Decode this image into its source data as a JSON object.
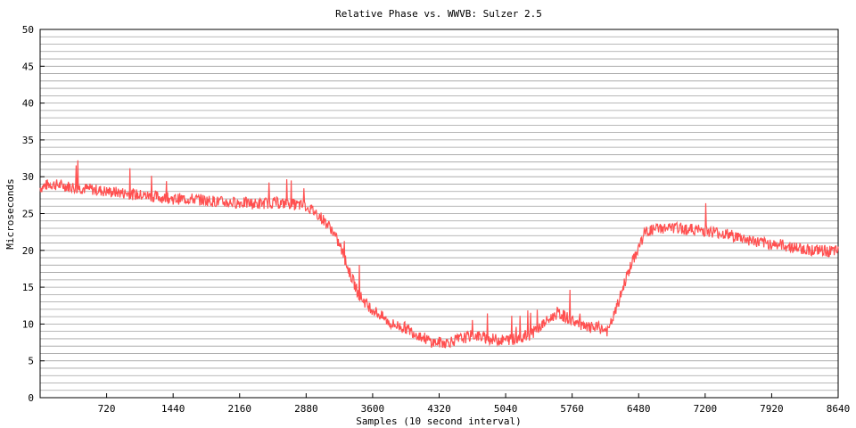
{
  "chart_data": {
    "type": "line",
    "title": "Relative Phase vs. WWVB: Sulzer 2.5",
    "xlabel": "Samples (10 second interval)",
    "ylabel": "Microseconds",
    "xlim": [
      0,
      8640
    ],
    "ylim": [
      0,
      50
    ],
    "xticks": [
      720,
      1440,
      2160,
      2880,
      3600,
      4320,
      5040,
      5760,
      6480,
      7200,
      7920,
      8640
    ],
    "xtick_labels": [
      "720",
      "1440",
      "2160",
      "2880",
      "3600",
      "4320",
      "5040",
      "5760",
      "6480",
      "7200",
      "7920",
      "8640"
    ],
    "yticks": [
      0,
      5,
      10,
      15,
      20,
      25,
      30,
      35,
      40,
      45,
      50
    ],
    "ytick_labels": [
      "0",
      "5",
      "10",
      "15",
      "20",
      "25",
      "30",
      "35",
      "40",
      "45",
      "50"
    ],
    "grid": "horizontal-every-1",
    "legend": "none",
    "line_color": "#ff5050",
    "series": [
      {
        "x": [
          0,
          100,
          250,
          400,
          550,
          720,
          900,
          1080,
          1250,
          1440,
          1620,
          1800,
          2000,
          2160,
          2350,
          2520,
          2700,
          2880,
          3000,
          3150,
          3250,
          3350,
          3450,
          3550,
          3650,
          3800,
          3950,
          4100,
          4250,
          4400,
          4550,
          4700,
          4850,
          5000,
          5150,
          5300,
          5450,
          5600,
          5760,
          5900,
          6050,
          6150,
          6250,
          6350,
          6450,
          6550,
          6700,
          6900,
          7100,
          7300,
          7500,
          7650,
          7800,
          8000,
          8200,
          8400,
          8640
        ],
        "y": [
          28.5,
          29.0,
          28.8,
          28.5,
          28.3,
          28.0,
          27.8,
          27.5,
          27.3,
          27.0,
          27.0,
          26.8,
          26.5,
          26.5,
          26.3,
          26.5,
          26.3,
          26.0,
          25.0,
          23.0,
          20.5,
          17.0,
          14.0,
          12.5,
          11.5,
          10.0,
          9.5,
          8.5,
          7.5,
          7.5,
          8.0,
          8.5,
          8.0,
          7.8,
          8.0,
          8.5,
          10.0,
          11.5,
          10.5,
          9.5,
          9.5,
          9.0,
          12.5,
          16.5,
          19.5,
          22.5,
          23.0,
          23.0,
          22.8,
          22.5,
          22.0,
          21.5,
          21.0,
          20.8,
          20.3,
          20.0,
          19.8
        ]
      }
    ]
  }
}
